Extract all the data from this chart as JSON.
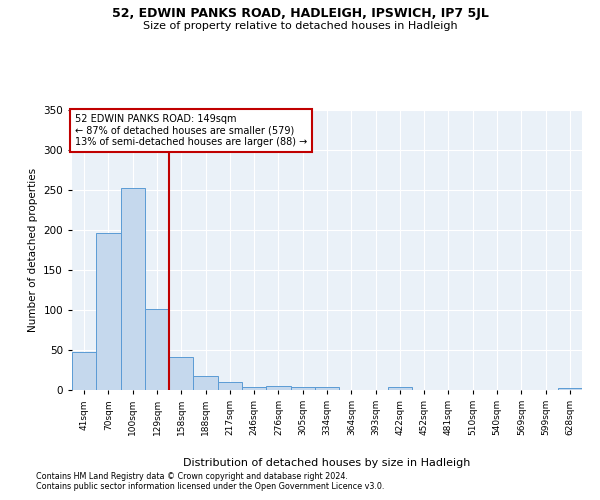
{
  "title": "52, EDWIN PANKS ROAD, HADLEIGH, IPSWICH, IP7 5JL",
  "subtitle": "Size of property relative to detached houses in Hadleigh",
  "xlabel": "Distribution of detached houses by size in Hadleigh",
  "ylabel": "Number of detached properties",
  "categories": [
    "41sqm",
    "70sqm",
    "100sqm",
    "129sqm",
    "158sqm",
    "188sqm",
    "217sqm",
    "246sqm",
    "276sqm",
    "305sqm",
    "334sqm",
    "364sqm",
    "393sqm",
    "422sqm",
    "452sqm",
    "481sqm",
    "510sqm",
    "540sqm",
    "569sqm",
    "599sqm",
    "628sqm"
  ],
  "values": [
    48,
    196,
    252,
    101,
    41,
    17,
    10,
    4,
    5,
    4,
    4,
    0,
    0,
    4,
    0,
    0,
    0,
    0,
    0,
    0,
    3
  ],
  "bar_color": "#c5d8ed",
  "bar_edge_color": "#5b9bd5",
  "vline_x": 3.5,
  "vline_color": "#c00000",
  "annotation_line1": "52 EDWIN PANKS ROAD: 149sqm",
  "annotation_line2": "← 87% of detached houses are smaller (579)",
  "annotation_line3": "13% of semi-detached houses are larger (88) →",
  "annotation_box_color": "#ffffff",
  "annotation_box_edge_color": "#c00000",
  "ylim": [
    0,
    350
  ],
  "yticks": [
    0,
    50,
    100,
    150,
    200,
    250,
    300,
    350
  ],
  "footer1": "Contains HM Land Registry data © Crown copyright and database right 2024.",
  "footer2": "Contains public sector information licensed under the Open Government Licence v3.0.",
  "plot_bg_color": "#eaf1f8"
}
